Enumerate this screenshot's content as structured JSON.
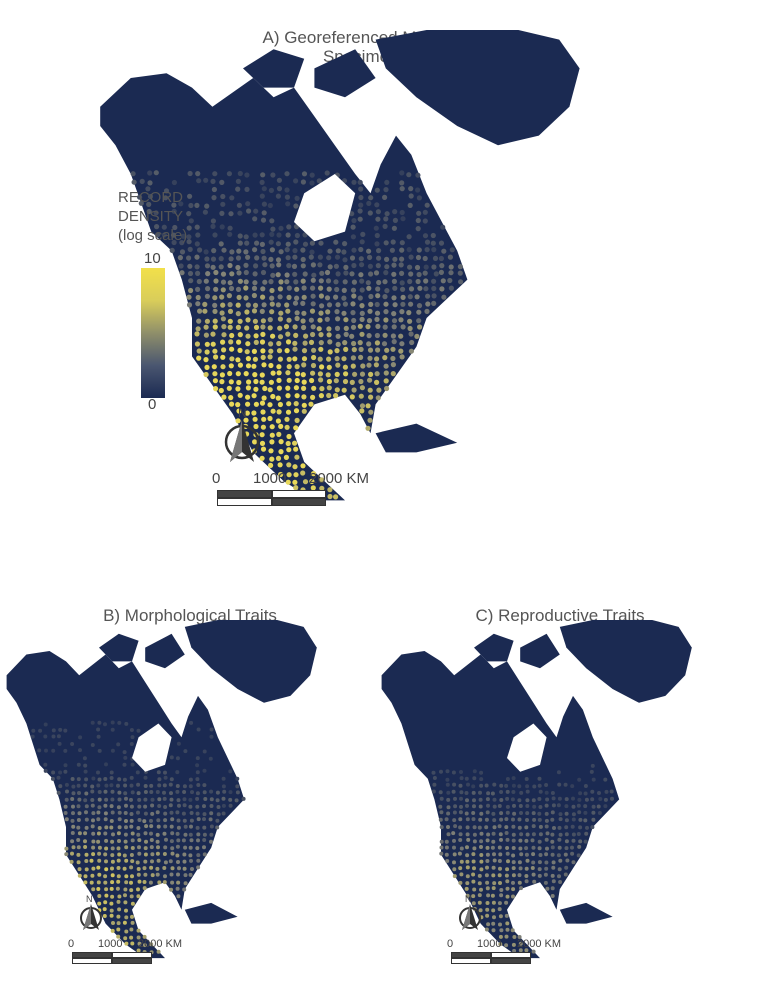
{
  "panels": [
    {
      "id": "A",
      "title": "A) Georeferenced Mammal Specimens",
      "level": 0.62,
      "scale_labels": [
        "0",
        "1000",
        "2000 KM"
      ],
      "north_label": "N"
    },
    {
      "id": "B",
      "title": "B) Morphological Traits",
      "level": 0.35,
      "scale_labels": [
        "0",
        "1000",
        "2000 KM"
      ],
      "north_label": "N"
    },
    {
      "id": "C",
      "title": "C) Reproductive Traits",
      "level": 0.2,
      "scale_labels": [
        "0",
        "1000",
        "2000 KM"
      ],
      "north_label": "N"
    }
  ],
  "legend": {
    "title_line1": "RECORD",
    "title_line2": "DENSITY",
    "title_line3": "(log scale)",
    "max": "10",
    "min": "0",
    "color_high": "#f2e04a",
    "color_low": "#1b2a52"
  },
  "colors": {
    "dark": "#1b2a52",
    "mid": "#7f8078",
    "yellow": "#e8d85a"
  }
}
